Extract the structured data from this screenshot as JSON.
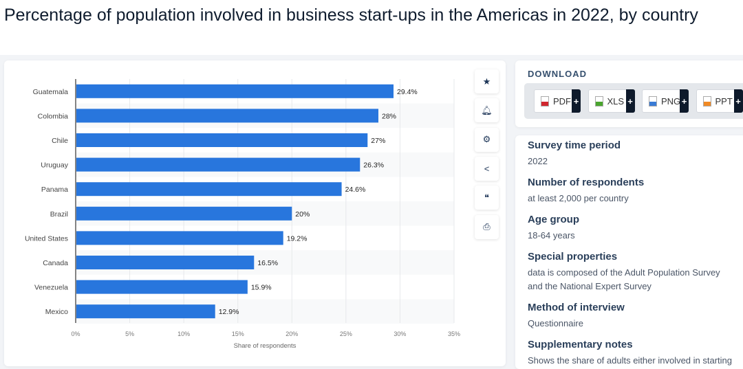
{
  "title": "Percentage of population involved in business start-ups in the Americas in 2022, by country",
  "tools": [
    "star-icon",
    "bell-icon",
    "gear-icon",
    "share-icon",
    "quote-icon",
    "print-icon"
  ],
  "download": {
    "heading": "DOWNLOAD",
    "buttons": [
      {
        "label": "PDF",
        "color": "#d0262e"
      },
      {
        "label": "XLS",
        "color": "#4aa52e"
      },
      {
        "label": "PNG",
        "color": "#3a7bd5"
      },
      {
        "label": "PPT",
        "color": "#f08a24"
      }
    ],
    "plus": "+"
  },
  "info": [
    {
      "h": "Survey time period",
      "v": "2022"
    },
    {
      "h": "Number of respondents",
      "v": "at least 2,000 per country"
    },
    {
      "h": "Age group",
      "v": "18-64 years"
    },
    {
      "h": "Special properties",
      "v": "data is composed of the Adult Population Survey and the National Expert Survey"
    },
    {
      "h": "Method of interview",
      "v": "Questionnaire"
    },
    {
      "h": "Supplementary notes",
      "v": "Shows the share of adults either involved in starting"
    }
  ],
  "chart_data": {
    "type": "bar",
    "orientation": "horizontal",
    "categories": [
      "Guatemala",
      "Colombia",
      "Chile",
      "Uruguay",
      "Panama",
      "Brazil",
      "United States",
      "Canada",
      "Venezuela",
      "Mexico"
    ],
    "values": [
      29.4,
      28,
      27,
      26.3,
      24.6,
      20,
      19.2,
      16.5,
      15.9,
      12.9
    ],
    "labels": [
      "29.4%",
      "28%",
      "27%",
      "26.3%",
      "24.6%",
      "20%",
      "19.2%",
      "16.5%",
      "15.9%",
      "12.9%"
    ],
    "xlabel": "Share of respondents",
    "xlim": [
      0,
      35
    ],
    "ticks": [
      0,
      5,
      10,
      15,
      20,
      25,
      30,
      35
    ],
    "tick_labels": [
      "0%",
      "5%",
      "10%",
      "15%",
      "20%",
      "25%",
      "30%",
      "35%"
    ],
    "bar_color": "#2876dd",
    "grid": true
  }
}
